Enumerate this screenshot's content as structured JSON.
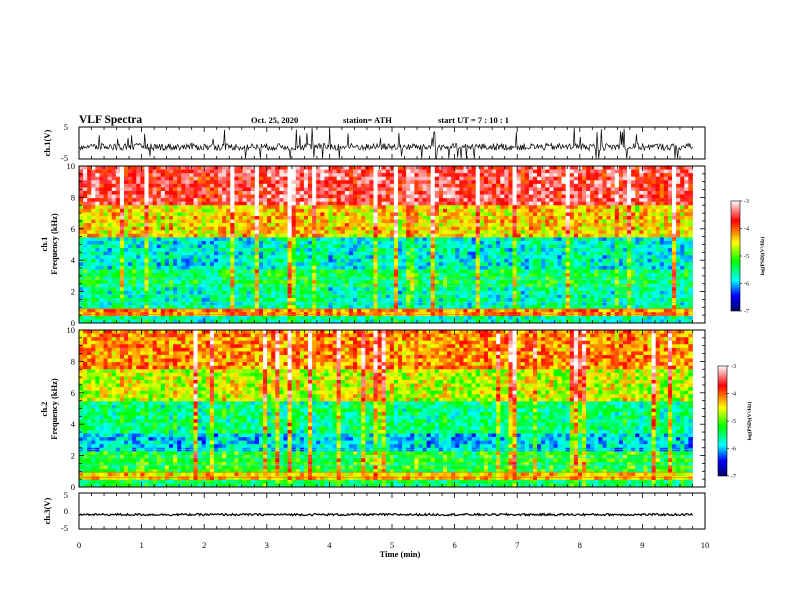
{
  "header": {
    "title": "VLF Spectra",
    "date": "Oct. 25, 2020",
    "station": "station= ATH",
    "start": "start  UT =   7 : 10 : 1"
  },
  "colors": {
    "colormap": [
      "#000066",
      "#0000ff",
      "#00ffff",
      "#00ff00",
      "#ffff00",
      "#ff0000",
      "#ffffff"
    ]
  },
  "chart_data": [
    {
      "type": "line",
      "name": "ch.1 waveform",
      "ylabel": "ch.1(V)",
      "ylim": [
        -5,
        5
      ],
      "yticks": [
        "5",
        "-5"
      ],
      "xlim": [
        0,
        10
      ],
      "mean_level": -1.2,
      "data_end_min": 9.8
    },
    {
      "type": "heatmap",
      "name": "ch.1 spectrogram",
      "ylabel_channel": "ch.1",
      "ylabel": "Frequency (kHz)",
      "ylim": [
        0,
        10
      ],
      "yticks": [
        "0",
        "2",
        "4",
        "6",
        "8",
        "10"
      ],
      "xlim": [
        0,
        10
      ],
      "data_end_min": 9.8,
      "colorbar": {
        "label": "log(PSD)(V²/Hz)",
        "range": [
          -7,
          -3
        ],
        "ticks": [
          "-3",
          "-4",
          "-5",
          "-6",
          "-7"
        ]
      }
    },
    {
      "type": "heatmap",
      "name": "ch.2 spectrogram",
      "ylabel_channel": "ch.2",
      "ylabel": "Frequency (kHz)",
      "ylim": [
        0,
        10
      ],
      "yticks": [
        "0",
        "2",
        "4",
        "6",
        "8",
        "10"
      ],
      "xlim": [
        0,
        10
      ],
      "data_end_min": 9.8,
      "colorbar": {
        "label": "log(PSD)(V²/Hz)",
        "range": [
          -7,
          -3
        ],
        "ticks": [
          "-3",
          "-4",
          "-5",
          "-6",
          "-7"
        ]
      }
    },
    {
      "type": "line",
      "name": "ch.3 waveform",
      "ylabel": "ch.3(V)",
      "ylim": [
        -5,
        5
      ],
      "yticks": [
        "5",
        "0",
        "-5"
      ],
      "xlim": [
        0,
        10
      ],
      "mean_level": -1.0,
      "data_end_min": 9.8,
      "xlabel": "Time (min)",
      "xticks": [
        "0",
        "1",
        "2",
        "3",
        "4",
        "5",
        "6",
        "7",
        "8",
        "9",
        "10"
      ]
    }
  ]
}
